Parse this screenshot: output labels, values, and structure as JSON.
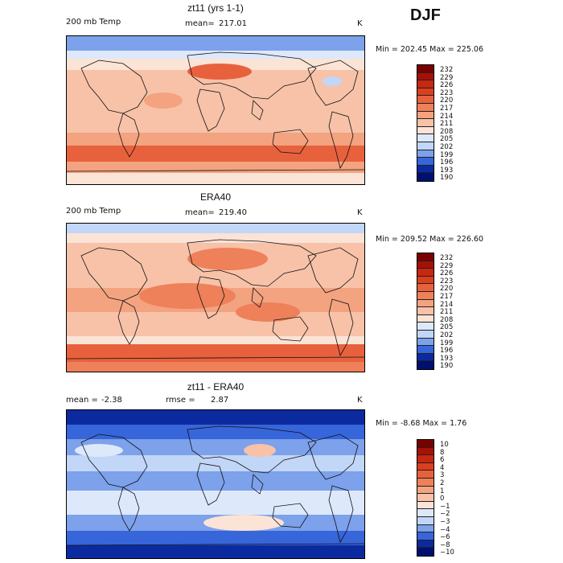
{
  "season": "DJF",
  "colors": {
    "warm": [
      "#fbe3d6",
      "#f7c2a8",
      "#f3a37f",
      "#ee805a",
      "#e8613d",
      "#dc3f1f",
      "#c62810",
      "#a51107",
      "#7a0000"
    ],
    "neutral": "#fbf2ec",
    "cool": [
      "#dde9fb",
      "#c2d6f7",
      "#a2bdf2",
      "#7da1ea",
      "#5a83e2",
      "#3765da",
      "#1a44c6",
      "#0c2aa0",
      "#001070"
    ]
  },
  "chart_data": [
    {
      "type": "heatmap",
      "title": "zt11 (yrs 1-1)",
      "variable": "200 mb Temp",
      "mean_label": "mean=",
      "mean": "217.01",
      "units": "K",
      "min_max_label": "Min = 202.45 Max = 225.06",
      "min": 202.45,
      "max": 225.06,
      "colorbar_levels": [
        "232",
        "229",
        "226",
        "223",
        "220",
        "217",
        "214",
        "211",
        "208",
        "205",
        "202",
        "199",
        "196",
        "193",
        "190"
      ]
    },
    {
      "type": "heatmap",
      "title": "ERA40",
      "variable": "200 mb Temp",
      "mean_label": "mean=",
      "mean": "219.40",
      "units": "K",
      "min_max_label": "Min = 209.52 Max = 226.60",
      "min": 209.52,
      "max": 226.6,
      "colorbar_levels": [
        "232",
        "229",
        "226",
        "223",
        "220",
        "217",
        "214",
        "211",
        "208",
        "205",
        "202",
        "199",
        "196",
        "193",
        "190"
      ]
    },
    {
      "type": "heatmap",
      "title": "zt11 - ERA40",
      "mean_label": "mean =",
      "mean": "-2.38",
      "rmse_label": "rmse =",
      "rmse": "2.87",
      "units": "K",
      "min_max_label": "Min = -8.68 Max = 1.76",
      "min": -8.68,
      "max": 1.76,
      "colorbar_levels": [
        "10",
        "8",
        "6",
        "4",
        "3",
        "2",
        "1",
        "0",
        "−1",
        "−2",
        "−3",
        "−4",
        "−6",
        "−8",
        "−10"
      ]
    }
  ]
}
